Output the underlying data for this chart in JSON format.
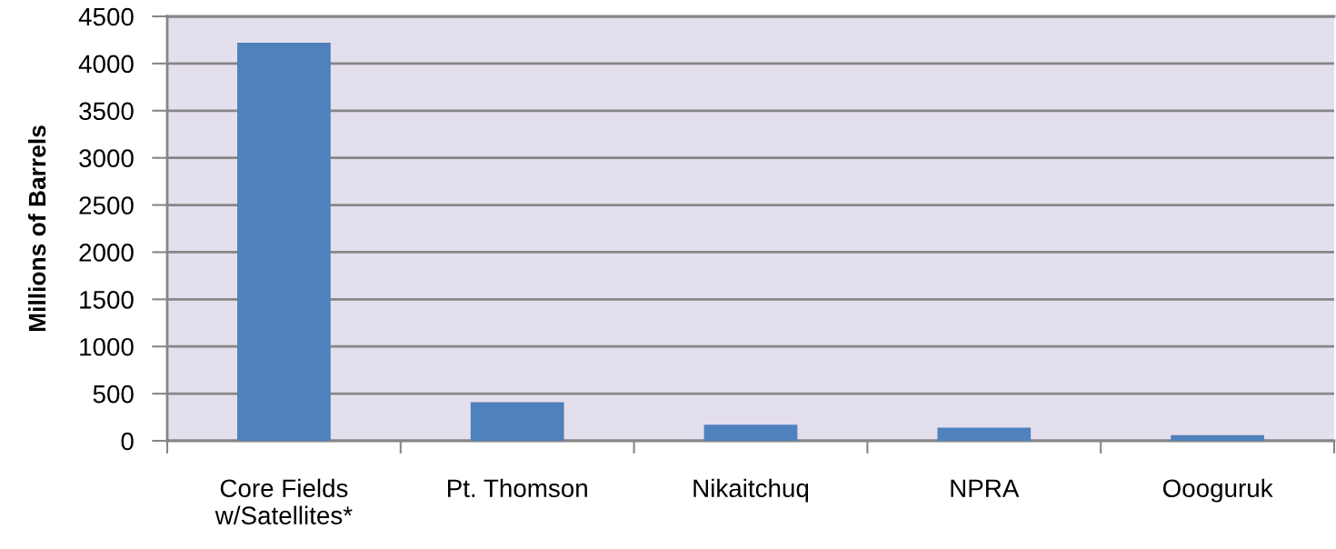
{
  "chart_data": {
    "type": "bar",
    "ylabel": "Millions of Barrels",
    "categories": [
      "Core Fields\nw/Satellites*",
      "Pt. Thomson",
      "Nikaitchuq",
      "NPRA",
      "Oooguruk"
    ],
    "values": [
      4220,
      410,
      170,
      140,
      60
    ],
    "color": "#4f81bd",
    "ylim": [
      0,
      4500
    ],
    "yticks": [
      0,
      500,
      1000,
      1500,
      2000,
      2500,
      3000,
      3500,
      4000,
      4500
    ],
    "grid": "y"
  }
}
